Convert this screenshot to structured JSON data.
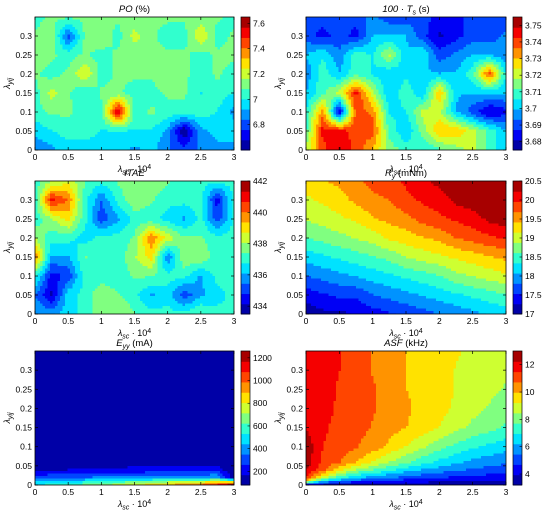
{
  "chart_data": [
    {
      "type": "contour",
      "title_main": "PO",
      "title_sub": "",
      "title_unit": " (%)",
      "xlabel": "λ_sc · 10^4",
      "ylabel": "λ_yij",
      "xlim": [
        0,
        3
      ],
      "ylim": [
        0,
        0.35
      ],
      "xticks": [
        "0",
        "0.5",
        "1",
        "1.5",
        "2",
        "2.5",
        "3"
      ],
      "yticks": [
        "0",
        "0.05",
        "0.1",
        "0.15",
        "0.2",
        "0.25",
        "0.3"
      ],
      "clim": [
        6.6,
        7.65
      ],
      "cbar_ticks": [
        6.8,
        7,
        7.2,
        7.4,
        7.6
      ],
      "x": [
        0,
        0.25,
        0.5,
        0.75,
        1,
        1.25,
        1.5,
        1.75,
        2,
        2.25,
        2.5,
        2.75,
        3
      ],
      "y": [
        0,
        0.05,
        0.1,
        0.15,
        0.2,
        0.25,
        0.3,
        0.35
      ],
      "z": [
        [
          6.85,
          6.9,
          6.95,
          6.95,
          6.95,
          6.95,
          6.9,
          6.95,
          6.85,
          6.8,
          6.85,
          6.9,
          6.9
        ],
        [
          6.95,
          7.0,
          7.05,
          7.05,
          7.0,
          7.0,
          7.0,
          7.0,
          6.9,
          6.6,
          6.9,
          6.95,
          6.95
        ],
        [
          7.05,
          7.1,
          7.1,
          7.05,
          7.05,
          7.6,
          7.05,
          7.1,
          7.05,
          7.05,
          7.05,
          7.0,
          6.9
        ],
        [
          7.05,
          7.2,
          7.1,
          7.0,
          7.1,
          7.1,
          7.05,
          7.05,
          7.1,
          7.1,
          7.0,
          7.05,
          7.0
        ],
        [
          7.1,
          7.05,
          7.1,
          7.25,
          7.05,
          7.1,
          7.1,
          7.1,
          7.15,
          7.1,
          7.05,
          7.1,
          7.05
        ],
        [
          7.15,
          7.1,
          7.05,
          7.1,
          7.05,
          7.1,
          7.1,
          7.1,
          7.1,
          7.1,
          7.05,
          7.1,
          7.1
        ],
        [
          7.1,
          7.15,
          6.8,
          7.1,
          7.15,
          7.05,
          7.2,
          7.1,
          7.05,
          7.05,
          7.25,
          7.05,
          7.1
        ],
        [
          7.05,
          7.1,
          7.1,
          7.1,
          7.1,
          7.1,
          7.1,
          7.1,
          7.1,
          7.1,
          7.1,
          7.1,
          7.05
        ]
      ]
    },
    {
      "type": "contour",
      "title_main": "100 · T",
      "title_sub": "s",
      "title_unit": " (s)",
      "xlabel": "λ_sc · 10^4",
      "ylabel": "λ_yij",
      "xlim": [
        0,
        3
      ],
      "ylim": [
        0,
        0.35
      ],
      "xticks": [
        "0",
        "0.5",
        "1",
        "1.5",
        "2",
        "2.5",
        "3"
      ],
      "yticks": [
        "0",
        "0.05",
        "0.1",
        "0.15",
        "0.2",
        "0.25",
        "0.3"
      ],
      "clim": [
        3.675,
        3.755
      ],
      "cbar_ticks": [
        3.68,
        3.69,
        3.7,
        3.71,
        3.72,
        3.73,
        3.74,
        3.75
      ],
      "x": [
        0,
        0.25,
        0.5,
        0.75,
        1,
        1.25,
        1.5,
        1.75,
        2,
        2.25,
        2.5,
        2.75,
        3
      ],
      "y": [
        0,
        0.05,
        0.1,
        0.15,
        0.2,
        0.25,
        0.3,
        0.35
      ],
      "z": [
        [
          3.72,
          3.74,
          3.75,
          3.74,
          3.73,
          3.715,
          3.71,
          3.705,
          3.71,
          3.715,
          3.72,
          3.71,
          3.7
        ],
        [
          3.71,
          3.745,
          3.745,
          3.74,
          3.74,
          3.71,
          3.7,
          3.715,
          3.73,
          3.73,
          3.72,
          3.71,
          3.7
        ],
        [
          3.705,
          3.735,
          3.68,
          3.74,
          3.735,
          3.705,
          3.705,
          3.72,
          3.72,
          3.7,
          3.69,
          3.68,
          3.685
        ],
        [
          3.7,
          3.71,
          3.72,
          3.745,
          3.72,
          3.7,
          3.71,
          3.7,
          3.73,
          3.7,
          3.7,
          3.7,
          3.7
        ],
        [
          3.695,
          3.71,
          3.7,
          3.71,
          3.705,
          3.7,
          3.705,
          3.7,
          3.7,
          3.7,
          3.71,
          3.74,
          3.705
        ],
        [
          3.7,
          3.705,
          3.695,
          3.71,
          3.705,
          3.72,
          3.7,
          3.705,
          3.69,
          3.695,
          3.7,
          3.7,
          3.695
        ],
        [
          3.69,
          3.685,
          3.69,
          3.685,
          3.7,
          3.7,
          3.7,
          3.69,
          3.68,
          3.685,
          3.69,
          3.69,
          3.695
        ],
        [
          3.69,
          3.69,
          3.69,
          3.69,
          3.695,
          3.69,
          3.69,
          3.69,
          3.685,
          3.685,
          3.69,
          3.69,
          3.69
        ]
      ]
    },
    {
      "type": "contour",
      "title_main": "ITAE",
      "title_sub": "",
      "title_unit": "",
      "xlabel": "λ_sc · 10^4",
      "ylabel": "λ_yij",
      "xlim": [
        0,
        3
      ],
      "ylim": [
        0,
        0.35
      ],
      "xticks": [
        "0",
        "0.5",
        "1",
        "1.5",
        "2",
        "2.5",
        "3"
      ],
      "yticks": [
        "0",
        "0.05",
        "0.1",
        "0.15",
        "0.2",
        "0.25",
        "0.3"
      ],
      "clim": [
        433.5,
        442
      ],
      "cbar_ticks": [
        434,
        436,
        438,
        440,
        442
      ],
      "x": [
        0,
        0.25,
        0.5,
        0.75,
        1,
        1.25,
        1.5,
        1.75,
        2,
        2.25,
        2.5,
        2.75,
        3
      ],
      "y": [
        0,
        0.05,
        0.1,
        0.15,
        0.2,
        0.25,
        0.3,
        0.35
      ],
      "z": [
        [
          436,
          436,
          436.5,
          437,
          438,
          438,
          437.5,
          437,
          437,
          437,
          437.5,
          437,
          437
        ],
        [
          435.5,
          434,
          436.5,
          437,
          438,
          437.5,
          437,
          436,
          436.5,
          435,
          436,
          436.5,
          437
        ],
        [
          437,
          434.5,
          435,
          437,
          437,
          437,
          437.5,
          437.5,
          437,
          437,
          436,
          437,
          437
        ],
        [
          440,
          436,
          436,
          437.5,
          437,
          437,
          438,
          439,
          435.5,
          438,
          438,
          437,
          437
        ],
        [
          438,
          437,
          437,
          436.5,
          437,
          437,
          437.5,
          440,
          438.5,
          437.5,
          437.5,
          437,
          437
        ],
        [
          437,
          438,
          439,
          437,
          435,
          436,
          437,
          437,
          436.5,
          436,
          437,
          435,
          437
        ],
        [
          437,
          441,
          440,
          437,
          435.5,
          437,
          438,
          437.5,
          437,
          437,
          437,
          434.5,
          437
        ],
        [
          437,
          438,
          438.5,
          437.5,
          437,
          437.5,
          438,
          438,
          437.5,
          437,
          437,
          437,
          437
        ]
      ]
    },
    {
      "type": "contour",
      "title_main": "R",
      "title_sub": "y",
      "title_unit": " (mNm)",
      "xlabel": "λ_sc · 10^4",
      "ylabel": "λ_yij",
      "xlim": [
        0,
        3
      ],
      "ylim": [
        0,
        0.35
      ],
      "xticks": [
        "0",
        "0.5",
        "1",
        "1.5",
        "2",
        "2.5",
        "3"
      ],
      "yticks": [
        "0",
        "0.05",
        "0.1",
        "0.15",
        "0.2",
        "0.25",
        "0.3"
      ],
      "clim": [
        17,
        20.5
      ],
      "cbar_ticks": [
        17,
        17.5,
        18,
        18.5,
        19,
        19.5,
        20,
        20.5
      ],
      "x": [
        0,
        0.25,
        0.5,
        0.75,
        1,
        1.25,
        1.5,
        1.75,
        2,
        2.25,
        2.5,
        2.75,
        3
      ],
      "y": [
        0,
        0.05,
        0.1,
        0.15,
        0.2,
        0.25,
        0.3,
        0.35
      ],
      "z": [
        [
          17.1,
          17.2,
          17.2,
          17.3,
          17.4,
          17.5,
          17.6,
          17.7,
          17.8,
          17.9,
          18.0,
          18.1,
          18.2
        ],
        [
          17.4,
          17.5,
          17.6,
          17.6,
          17.8,
          17.9,
          18.0,
          18.1,
          18.2,
          18.3,
          18.4,
          18.5,
          18.6
        ],
        [
          17.8,
          17.9,
          18.0,
          18.1,
          18.2,
          18.3,
          18.4,
          18.5,
          18.6,
          18.8,
          18.9,
          19.0,
          19.1
        ],
        [
          18.2,
          18.3,
          18.4,
          18.5,
          18.6,
          18.7,
          18.9,
          19.0,
          19.1,
          19.2,
          19.3,
          19.4,
          19.5
        ],
        [
          18.6,
          18.7,
          18.8,
          18.9,
          19.0,
          19.2,
          19.3,
          19.4,
          19.5,
          19.7,
          19.8,
          19.9,
          20.0
        ],
        [
          18.9,
          19.0,
          19.1,
          19.2,
          19.4,
          19.5,
          19.6,
          19.8,
          19.9,
          20.0,
          20.1,
          20.3,
          20.4
        ],
        [
          19.1,
          19.2,
          19.3,
          19.5,
          19.6,
          19.7,
          19.9,
          20.0,
          20.1,
          20.3,
          20.4,
          20.5,
          20.6
        ],
        [
          19.3,
          19.4,
          19.5,
          19.6,
          19.8,
          19.9,
          20.0,
          20.2,
          20.3,
          20.4,
          20.5,
          20.6,
          20.7
        ]
      ]
    },
    {
      "type": "contour",
      "title_main": "E",
      "title_sub": "yy",
      "title_unit": " (mA)",
      "xlabel": "λ_sc · 10^4",
      "ylabel": "λ_yij",
      "xlim": [
        0,
        3
      ],
      "ylim": [
        0,
        0.35
      ],
      "xticks": [
        "0",
        "0.5",
        "1",
        "1.5",
        "2",
        "2.5",
        "3"
      ],
      "yticks": [
        "0",
        "0.05",
        "0.1",
        "0.15",
        "0.2",
        "0.25",
        "0.3"
      ],
      "clim": [
        80,
        1260
      ],
      "cbar_ticks": [
        200,
        400,
        600,
        800,
        1000,
        1200
      ],
      "x": [
        0,
        0.25,
        0.5,
        0.75,
        1,
        1.25,
        1.5,
        1.75,
        2,
        2.25,
        2.5,
        2.75,
        3
      ],
      "y": [
        0,
        0.02,
        0.04,
        0.06,
        0.1,
        0.2,
        0.35
      ],
      "z": [
        [
          520,
          560,
          600,
          640,
          690,
          740,
          790,
          840,
          890,
          950,
          1000,
          1100,
          1250
        ],
        [
          300,
          320,
          340,
          350,
          360,
          370,
          380,
          390,
          400,
          410,
          420,
          430,
          100
        ],
        [
          150,
          160,
          170,
          180,
          185,
          190,
          195,
          200,
          200,
          200,
          205,
          210,
          100
        ],
        [
          110,
          110,
          115,
          118,
          120,
          122,
          125,
          125,
          128,
          128,
          130,
          130,
          100
        ],
        [
          100,
          100,
          100,
          100,
          100,
          100,
          100,
          100,
          100,
          100,
          100,
          100,
          100
        ],
        [
          100,
          100,
          100,
          100,
          100,
          100,
          100,
          100,
          100,
          100,
          100,
          100,
          100
        ],
        [
          100,
          100,
          100,
          100,
          100,
          100,
          100,
          100,
          100,
          100,
          100,
          100,
          100
        ]
      ]
    },
    {
      "type": "contour",
      "title_main": "ASF",
      "title_sub": "",
      "title_unit": " (kHz)",
      "xlabel": "λ_sc · 10^4",
      "ylabel": "λ_yij",
      "xlim": [
        0,
        3
      ],
      "ylim": [
        0,
        0.35
      ],
      "xticks": [
        "0",
        "0.5",
        "1",
        "1.5",
        "2",
        "2.5",
        "3"
      ],
      "yticks": [
        "0",
        "0.05",
        "0.1",
        "0.15",
        "0.2",
        "0.25",
        "0.3"
      ],
      "clim": [
        3.2,
        13
      ],
      "cbar_ticks": [
        4,
        6,
        8,
        10,
        12
      ],
      "x": [
        0,
        0.25,
        0.5,
        0.75,
        1,
        1.25,
        1.5,
        1.75,
        2,
        2.25,
        2.5,
        2.75,
        3
      ],
      "y": [
        0,
        0.01,
        0.02,
        0.04,
        0.06,
        0.1,
        0.15,
        0.2,
        0.25,
        0.3,
        0.35
      ],
      "z": [
        [
          4.0,
          3.8,
          3.6,
          3.5,
          3.5,
          3.4,
          3.4,
          3.4,
          3.4,
          3.4,
          3.4,
          3.4,
          3.5
        ],
        [
          9.5,
          6.5,
          5.5,
          5.0,
          4.7,
          4.5,
          4.3,
          4.2,
          4.1,
          4.0,
          3.9,
          3.9,
          3.9
        ],
        [
          11.5,
          9.0,
          7.5,
          6.5,
          6.0,
          5.6,
          5.3,
          5.0,
          4.8,
          4.6,
          4.5,
          4.4,
          4.3
        ],
        [
          12.3,
          11.0,
          9.5,
          8.5,
          7.8,
          7.2,
          6.6,
          6.2,
          5.9,
          5.6,
          5.4,
          5.2,
          5.0
        ],
        [
          12.7,
          11.3,
          10.8,
          10.0,
          9.2,
          8.5,
          7.9,
          7.3,
          6.8,
          6.4,
          6.0,
          5.8,
          5.6
        ],
        [
          12.8,
          11.5,
          11.2,
          10.8,
          10.4,
          9.8,
          9.2,
          8.6,
          8.0,
          7.5,
          7.1,
          6.8,
          6.5
        ],
        [
          12.2,
          11.6,
          11.3,
          11.0,
          10.7,
          10.3,
          10.0,
          9.6,
          9.2,
          8.7,
          8.3,
          8.0,
          7.6
        ],
        [
          11.9,
          11.7,
          11.4,
          11.1,
          10.8,
          10.5,
          10.1,
          9.8,
          9.5,
          9.1,
          8.7,
          8.4,
          8.0
        ],
        [
          11.8,
          11.8,
          11.4,
          11.2,
          10.8,
          10.5,
          10.0,
          9.7,
          9.5,
          9.2,
          9.0,
          8.7,
          8.4
        ],
        [
          11.9,
          11.8,
          11.5,
          11.2,
          10.7,
          10.4,
          10.0,
          9.7,
          9.5,
          9.2,
          9.0,
          8.8,
          8.6
        ],
        [
          12.0,
          11.8,
          11.5,
          11.3,
          10.7,
          10.4,
          10.0,
          9.7,
          9.5,
          9.3,
          9.1,
          8.9,
          8.7
        ]
      ]
    }
  ]
}
